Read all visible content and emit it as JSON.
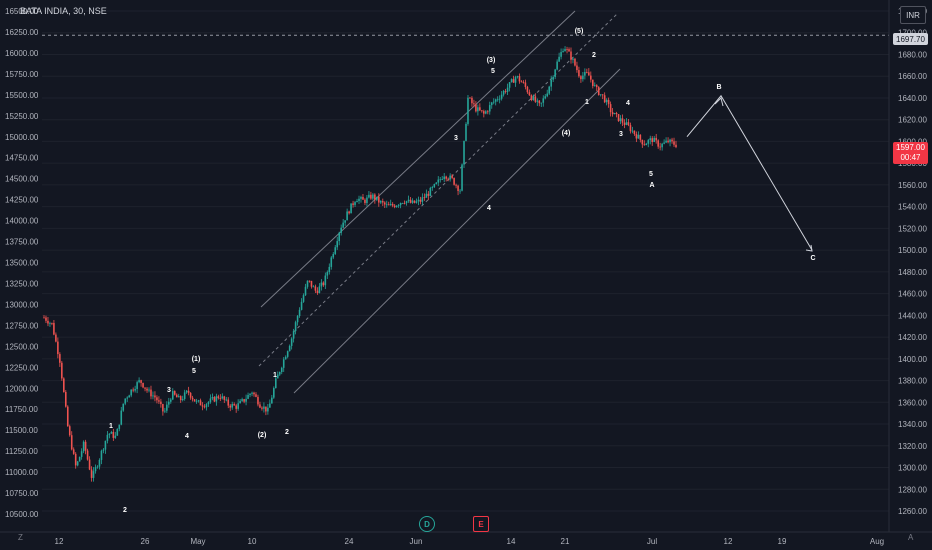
{
  "header": {
    "symbol_title": "BATA INDIA, 30, NSE",
    "currency": "INR"
  },
  "price_tags": {
    "reference_level": "1697.70",
    "last_price": "1597.00",
    "countdown": "00:47"
  },
  "bottom": {
    "left_corner": "Z",
    "right_corner": "A"
  },
  "colors": {
    "background": "#131722",
    "up": "#26a69a",
    "down": "#ef5350",
    "grid": "#1e222d",
    "text": "#d1d4dc",
    "axis_text": "#b2b5be",
    "label": "#ffffff",
    "price_tag": "#f23645"
  },
  "icons": {
    "dividends": "dividend-d-icon",
    "earnings": "earnings-e-icon"
  },
  "chart_data": {
    "type": "candlestick",
    "title": "BATA INDIA, 30, NSE",
    "left_axis": {
      "ticks": [
        10500,
        10750,
        11000,
        11250,
        11500,
        11750,
        12000,
        12250,
        12500,
        12750,
        13000,
        13250,
        13500,
        13750,
        14000,
        14250,
        14500,
        14750,
        15000,
        15250,
        15500,
        15750,
        16000,
        16250,
        16500
      ],
      "tick_labels": [
        "10500.00",
        "10750.00",
        "11000.00",
        "11250.00",
        "11500.00",
        "11750.00",
        "12000.00",
        "12250.00",
        "12500.00",
        "12750.00",
        "13000.00",
        "13250.00",
        "13500.00",
        "13750.00",
        "14000.00",
        "14250.00",
        "14500.00",
        "14750.00",
        "15000.00",
        "15250.00",
        "15500.00",
        "15750.00",
        "16000.00",
        "16250.00",
        "16500.00"
      ]
    },
    "right_axis": {
      "ticks": [
        1260,
        1280,
        1300,
        1320,
        1340,
        1360,
        1380,
        1400,
        1420,
        1440,
        1460,
        1480,
        1500,
        1520,
        1540,
        1560,
        1580,
        1600,
        1620,
        1640,
        1660,
        1680,
        1700,
        1720
      ],
      "tick_labels": [
        "1260.00",
        "1280.00",
        "1300.00",
        "1320.00",
        "1340.00",
        "1360.00",
        "1380.00",
        "1400.00",
        "1420.00",
        "1440.00",
        "1460.00",
        "1480.00",
        "1500.00",
        "1520.00",
        "1540.00",
        "1560.00",
        "1580.00",
        "1600.00",
        "1620.00",
        "1640.00",
        "1660.00",
        "1680.00",
        "1700.00",
        "1720.00"
      ]
    },
    "x_axis_labels": [
      "12",
      "26",
      "May",
      "10",
      "24",
      "Jun",
      "14",
      "21",
      "Jul",
      "12",
      "19",
      "Aug"
    ],
    "price_path_right_axis": [
      1438,
      1432,
      1398,
      1336,
      1300,
      1322,
      1290,
      1310,
      1332,
      1328,
      1362,
      1372,
      1380,
      1370,
      1364,
      1350,
      1368,
      1362,
      1370,
      1360,
      1358,
      1362,
      1366,
      1358,
      1356,
      1362,
      1370,
      1358,
      1352,
      1380,
      1400,
      1420,
      1448,
      1472,
      1462,
      1470,
      1495,
      1520,
      1535,
      1548,
      1545,
      1550,
      1544,
      1540,
      1542,
      1546,
      1543,
      1545,
      1552,
      1560,
      1570,
      1565,
      1555,
      1640,
      1630,
      1625,
      1635,
      1642,
      1650,
      1660,
      1652,
      1640,
      1632,
      1648,
      1670,
      1688,
      1676,
      1660,
      1662,
      1648,
      1640,
      1626,
      1620,
      1614,
      1606,
      1598,
      1602,
      1596,
      1600,
      1597
    ],
    "projection_right_axis": [
      1597,
      1642,
      1500
    ],
    "horizontal_level": 1697.7,
    "wave_labels": [
      "1",
      "2",
      "(1)",
      "5",
      "3",
      "4",
      "(2)",
      "1",
      "2",
      "3",
      "4",
      "(3)",
      "5",
      "(4)",
      "1",
      "(5)",
      "2",
      "4",
      "3",
      "5",
      "A",
      "B",
      "C"
    ]
  }
}
